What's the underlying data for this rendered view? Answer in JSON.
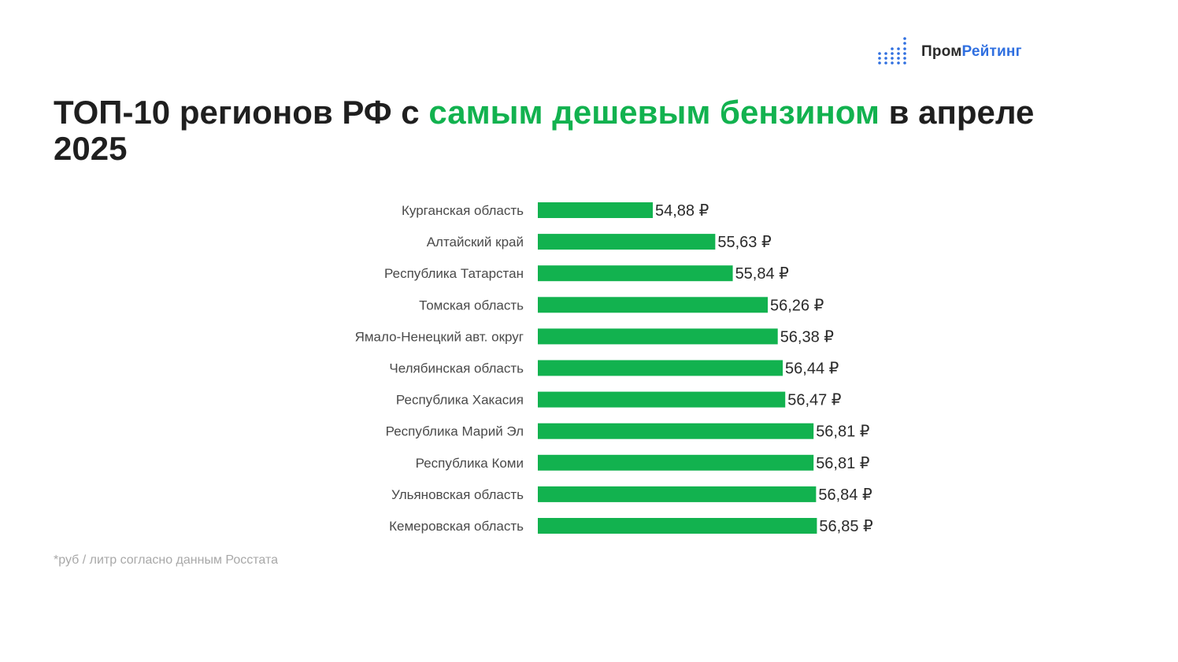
{
  "brand": {
    "name_part1": "Пром",
    "name_part2": "Рейтинг",
    "color_dark": "#2a2a2a",
    "color_accent": "#2f6fe0",
    "icon": "dot-bars-logo-icon"
  },
  "title": {
    "part1": "ТОП-10 регионов РФ с ",
    "highlight": "самым дешевым бензином",
    "part2": " в апреле 2025",
    "highlight_color": "#12b24f"
  },
  "footnote": "*руб / литр согласно данным Росстата",
  "chart_data": {
    "type": "bar",
    "orientation": "horizontal",
    "categories": [
      "Курганская область",
      "Алтайский край",
      "Республика Татарстан",
      "Томская область",
      "Ямало-Ненецкий авт. округ",
      "Челябинская область",
      "Республика Хакасия",
      "Республика Марий Эл",
      "Республика Коми",
      "Ульяновская область",
      "Кемеровская область"
    ],
    "values": [
      54.88,
      55.63,
      55.84,
      56.26,
      56.38,
      56.44,
      56.47,
      56.81,
      56.81,
      56.84,
      56.85
    ],
    "value_labels": [
      "54,88 ₽",
      "55,63 ₽",
      "55,84 ₽",
      "56,26 ₽",
      "56,38 ₽",
      "56,44 ₽",
      "56,47 ₽",
      "56,81 ₽",
      "56,81 ₽",
      "56,84 ₽",
      "56,85 ₽"
    ],
    "xlim": [
      53.5,
      57.2
    ],
    "bar_color": "#12b24f",
    "grid": false,
    "legend": "none"
  }
}
